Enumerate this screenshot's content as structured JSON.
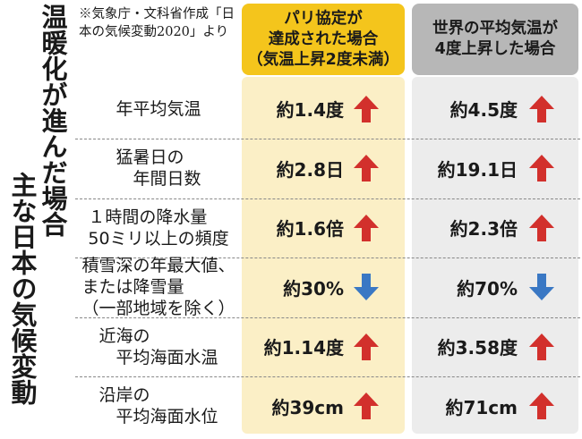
{
  "title": {
    "col1": "温暖化が進んだ場合",
    "col2": "主な日本の気候変動"
  },
  "source_note": "※気象庁・文科省作成「日本の気候変動2020」より",
  "headers": {
    "paris": "パリ協定が\n達成された場合\n（気温上昇2度未満）",
    "world": "世界の平均気温が\n4度上昇した場合"
  },
  "colors": {
    "paris_header": "#f4c51c",
    "paris_panel": "#fbefc6",
    "world_header": "#b7b7b7",
    "world_panel": "#ececec",
    "up_arrow": "#d2302c",
    "down_arrow": "#3a78c4"
  },
  "chart_data": {
    "type": "table",
    "columns": [
      "パリ協定が達成された場合（気温上昇2度未満）",
      "世界の平均気温が4度上昇した場合"
    ],
    "rows": [
      {
        "label": "年平均気温",
        "paris": "約1.4度",
        "world": "約4.5度",
        "paris_dir": "up",
        "world_dir": "up"
      },
      {
        "label": "猛暑日の\n　年間日数",
        "paris": "約2.8日",
        "world": "約19.1日",
        "paris_dir": "up",
        "world_dir": "up"
      },
      {
        "label": "１時間の降水量\n50ミリ以上の頻度",
        "paris": "約1.6倍",
        "world": "約2.3倍",
        "paris_dir": "up",
        "world_dir": "up"
      },
      {
        "label": "積雪深の年最大値、\nまたは降雪量\n（一部地域を除く）",
        "paris": "約30%",
        "world": "約70%",
        "paris_dir": "down",
        "world_dir": "down"
      },
      {
        "label": "近海の\n　平均海面水温",
        "paris": "約1.14度",
        "world": "約3.58度",
        "paris_dir": "up",
        "world_dir": "up"
      },
      {
        "label": "沿岸の\n　平均海面水位",
        "paris": "約39cm",
        "world": "約71cm",
        "paris_dir": "up",
        "world_dir": "up"
      }
    ]
  }
}
